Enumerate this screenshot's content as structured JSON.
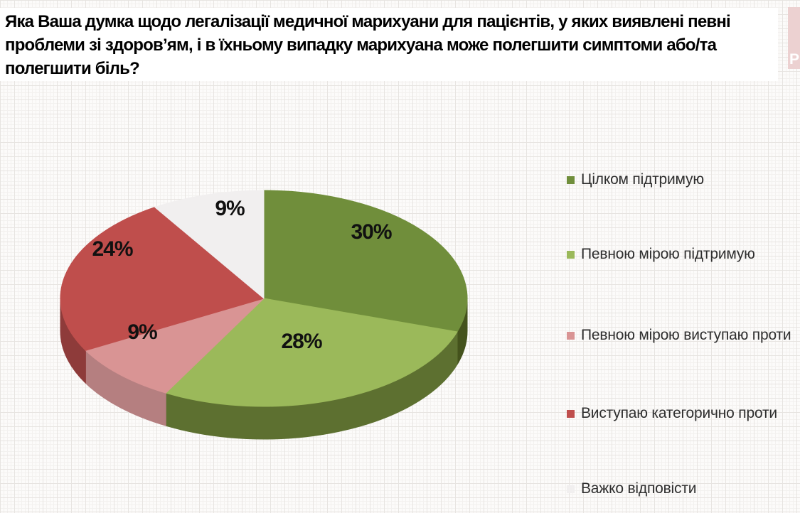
{
  "title": {
    "text": "Яка Ваша думка щодо легалізації медичної марихуани для пацієнтів, у яких виявлені певні проблеми зі здоров’ям, і в їхньому випадку марихуана може полегшити симптоми або/та полегшити біль?",
    "lines": [
      "Яка Ваша думка щодо легалізації медичної марихуани для пацієнтів, у яких виявлені певні",
      "проблеми зі здоров’ям, і в їхньому випадку марихуана може полегшити симптоми або/та",
      "полегшити біль?"
    ]
  },
  "watermark": {
    "letter": "P"
  },
  "chart_data": {
    "type": "pie",
    "style": "3d",
    "title": "Яка Ваша думка щодо легалізації медичної марихуани для пацієнтів, у яких виявлені певні проблеми зі здоров’ям, і в їхньому випадку марихуана може полегшити симптоми або/та полегшити біль?",
    "labels": [
      "Цілком підтримую",
      "Певною мірою підтримую",
      "Певною мірою виступаю проти",
      "Виступаю категорично проти",
      "Важко відповісти"
    ],
    "values": [
      30,
      28,
      9,
      24,
      9
    ],
    "unit": "%",
    "data_labels": [
      "30%",
      "28%",
      "9%",
      "24%",
      "9%"
    ],
    "colors": [
      "#708e3b",
      "#9bb95a",
      "#d99494",
      "#bf4e4c",
      "#f1efef"
    ],
    "side_colors": [
      "#44521c",
      "#5d7030",
      "#b57f80",
      "#8e3b3a",
      "#d9d6d6"
    ],
    "legend_position": "right",
    "start_angle_deg": 0,
    "direction": "clockwise"
  }
}
